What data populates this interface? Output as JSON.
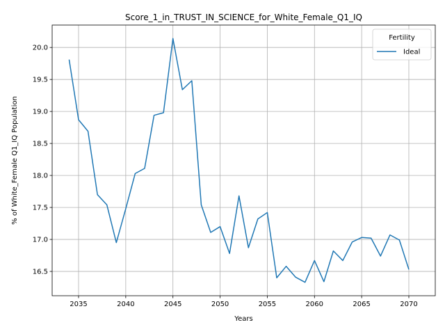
{
  "chart_data": {
    "type": "line",
    "title": "Score_1_in_TRUST_IN_SCIENCE_for_White_Female_Q1_IQ",
    "xlabel": "Years",
    "ylabel": "% of White_Female Q1_IQ Population",
    "xlim": [
      2032.2,
      2072.8
    ],
    "ylim": [
      16.12,
      20.35
    ],
    "xticks": [
      2035,
      2040,
      2045,
      2050,
      2055,
      2060,
      2065,
      2070
    ],
    "xtick_labels": [
      "2035",
      "2040",
      "2045",
      "2050",
      "2055",
      "2060",
      "2065",
      "2070"
    ],
    "yticks": [
      16.5,
      17.0,
      17.5,
      18.0,
      18.5,
      19.0,
      19.5,
      20.0
    ],
    "ytick_labels": [
      "16.5",
      "17.0",
      "17.5",
      "18.0",
      "18.5",
      "19.0",
      "19.5",
      "20.0"
    ],
    "grid": true,
    "legend": {
      "title": "Fertility",
      "placement": "top-right"
    },
    "series": [
      {
        "name": "Ideal",
        "color": "#1f77b4",
        "x": [
          2034,
          2035,
          2036,
          2037,
          2038,
          2039,
          2040,
          2041,
          2042,
          2043,
          2044,
          2045,
          2046,
          2047,
          2048,
          2049,
          2050,
          2051,
          2052,
          2053,
          2054,
          2055,
          2056,
          2057,
          2058,
          2059,
          2060,
          2061,
          2062,
          2063,
          2064,
          2065,
          2066,
          2067,
          2068,
          2069,
          2070
        ],
        "y": [
          19.81,
          18.87,
          18.69,
          17.7,
          17.54,
          16.95,
          17.48,
          18.03,
          18.11,
          18.94,
          18.98,
          20.14,
          19.34,
          19.48,
          17.54,
          17.11,
          17.2,
          16.78,
          17.68,
          16.87,
          17.32,
          17.42,
          16.4,
          16.58,
          16.41,
          16.33,
          16.67,
          16.34,
          16.82,
          16.67,
          16.96,
          17.03,
          17.02,
          16.74,
          17.07,
          16.99,
          16.53
        ]
      }
    ]
  }
}
